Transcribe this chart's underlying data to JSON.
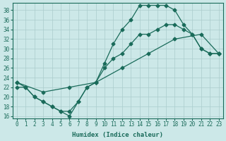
{
  "xlabel": "Humidex (Indice chaleur)",
  "bg_color": "#cce8e8",
  "grid_color": "#aacccc",
  "line_color": "#1a6b5a",
  "xlim": [
    -0.5,
    23.5
  ],
  "ylim": [
    15.5,
    39.5
  ],
  "xticks": [
    0,
    1,
    2,
    3,
    4,
    5,
    6,
    7,
    8,
    9,
    10,
    11,
    12,
    13,
    14,
    15,
    16,
    17,
    18,
    19,
    20,
    21,
    22,
    23
  ],
  "yticks": [
    16,
    18,
    20,
    22,
    24,
    26,
    28,
    30,
    32,
    34,
    36,
    38
  ],
  "line1_x": [
    0,
    1,
    2,
    3,
    4,
    5,
    6,
    7,
    8,
    9,
    10,
    11,
    12,
    13,
    14,
    15,
    16,
    17,
    18,
    19,
    20,
    21,
    22,
    23
  ],
  "line1_y": [
    23,
    22,
    20,
    19,
    18,
    17,
    16,
    19,
    22,
    23,
    27,
    31,
    34,
    36,
    39,
    39,
    39,
    39,
    38,
    35,
    33,
    30,
    29,
    29
  ],
  "line2_x": [
    0,
    3,
    6,
    9,
    12,
    15,
    18,
    21,
    23
  ],
  "line2_y": [
    23,
    21,
    22,
    23,
    26,
    29,
    32,
    33,
    29
  ],
  "line3_x": [
    0,
    1,
    2,
    3,
    4,
    5,
    6,
    7,
    8,
    9,
    10,
    11,
    12,
    13,
    14,
    15,
    16,
    17,
    18,
    19,
    20,
    21,
    22,
    23
  ],
  "line3_y": [
    22,
    22,
    20,
    19,
    18,
    17,
    17,
    19,
    22,
    23,
    26,
    28,
    29,
    31,
    33,
    33,
    34,
    35,
    35,
    34,
    33,
    30,
    29,
    29
  ]
}
